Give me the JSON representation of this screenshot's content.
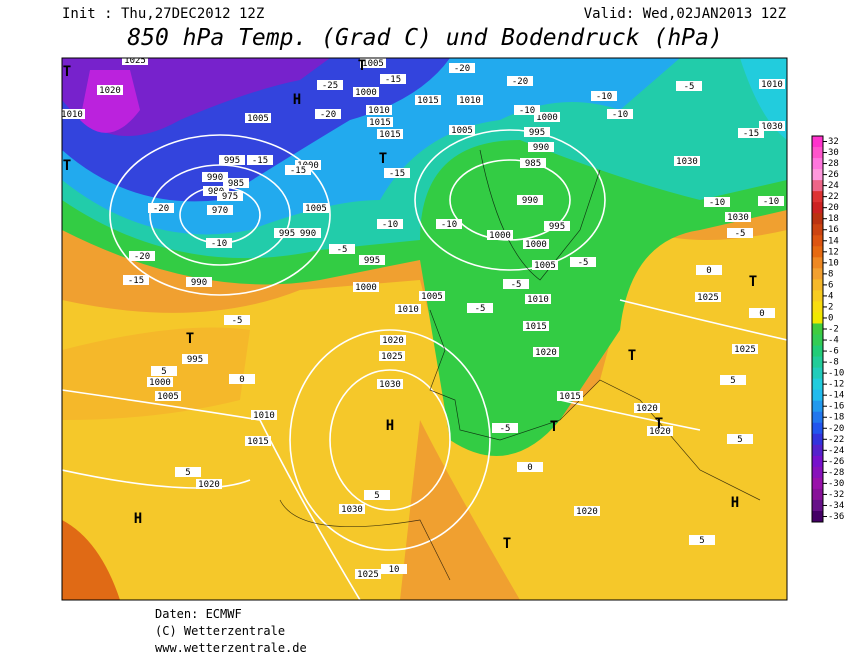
{
  "header": {
    "init": "Init : Thu,27DEC2012 12Z",
    "valid": "Valid: Wed,02JAN2013 12Z",
    "title": "850 hPa Temp. (Grad C) und Bodendruck (hPa)"
  },
  "colorbar": {
    "ticks": [
      32,
      30,
      28,
      26,
      24,
      22,
      20,
      18,
      16,
      14,
      12,
      10,
      8,
      6,
      4,
      2,
      0,
      -2,
      -4,
      -6,
      -8,
      -10,
      -12,
      -14,
      -16,
      -18,
      -20,
      -22,
      -24,
      -26,
      -28,
      -30,
      -32,
      -34,
      -36
    ],
    "colors": [
      "#ff33cc",
      "#ff55cc",
      "#ff77dd",
      "#ff99dd",
      "#ee6688",
      "#dd3333",
      "#cc2222",
      "#bb3311",
      "#cc4411",
      "#dd5511",
      "#e66a11",
      "#ee8822",
      "#f2a030",
      "#f5b82a",
      "#f7cc20",
      "#f8dd10",
      "#f0e800",
      "#3fcc3f",
      "#33cc55",
      "#22cc77",
      "#22cc99",
      "#22ccbb",
      "#22ccdd",
      "#22bbee",
      "#2299ee",
      "#2277ee",
      "#2255ee",
      "#3333dd",
      "#5522cc",
      "#7711cc",
      "#8811bb",
      "#9911aa",
      "#881199",
      "#661188",
      "#440066"
    ]
  },
  "map_labels": [
    "1025",
    "1020",
    "1010",
    "1005",
    "995",
    "990",
    "985",
    "980",
    "975",
    "970",
    "1000",
    "1005",
    "995",
    "990",
    "990",
    "995",
    "1000",
    "1005",
    "1010",
    "1015",
    "1020",
    "1030",
    "1025",
    "1030",
    "1025",
    "1020",
    "1010",
    "1005",
    "1000",
    "995",
    "1005",
    "1000",
    "1015",
    "1010",
    "1005",
    "1015",
    "1010",
    "1015",
    "1000",
    "995",
    "990",
    "985",
    "990",
    "995",
    "1000",
    "1000",
    "1005",
    "1010",
    "1015",
    "1020",
    "1015",
    "1020",
    "1020",
    "1020",
    "1030",
    "1030",
    "1030",
    "1025",
    "1025",
    "1010",
    "-20",
    "-20",
    "-25",
    "-15",
    "-20",
    "-10",
    "-10",
    "-10",
    "-5",
    "-5",
    "-5",
    "-5",
    "-5",
    "-5",
    "-10",
    "-10",
    "-10",
    "-10",
    "-5",
    "-15",
    "-15",
    "-15",
    "-20",
    "-20",
    "-15",
    "-10",
    "0",
    "5",
    "5",
    "5",
    "0",
    "0",
    "5",
    "5",
    "5",
    "10",
    "-5",
    "0",
    "-15"
  ],
  "markers": [
    "H",
    "H",
    "H",
    "H",
    "T",
    "T",
    "T",
    "T",
    "T",
    "T",
    "T",
    "T",
    "T",
    "T"
  ],
  "footer": {
    "source": "Daten: ECMWF",
    "copyright": "(C) Wetterzentrale",
    "url": "www.wetterzentrale.de"
  }
}
